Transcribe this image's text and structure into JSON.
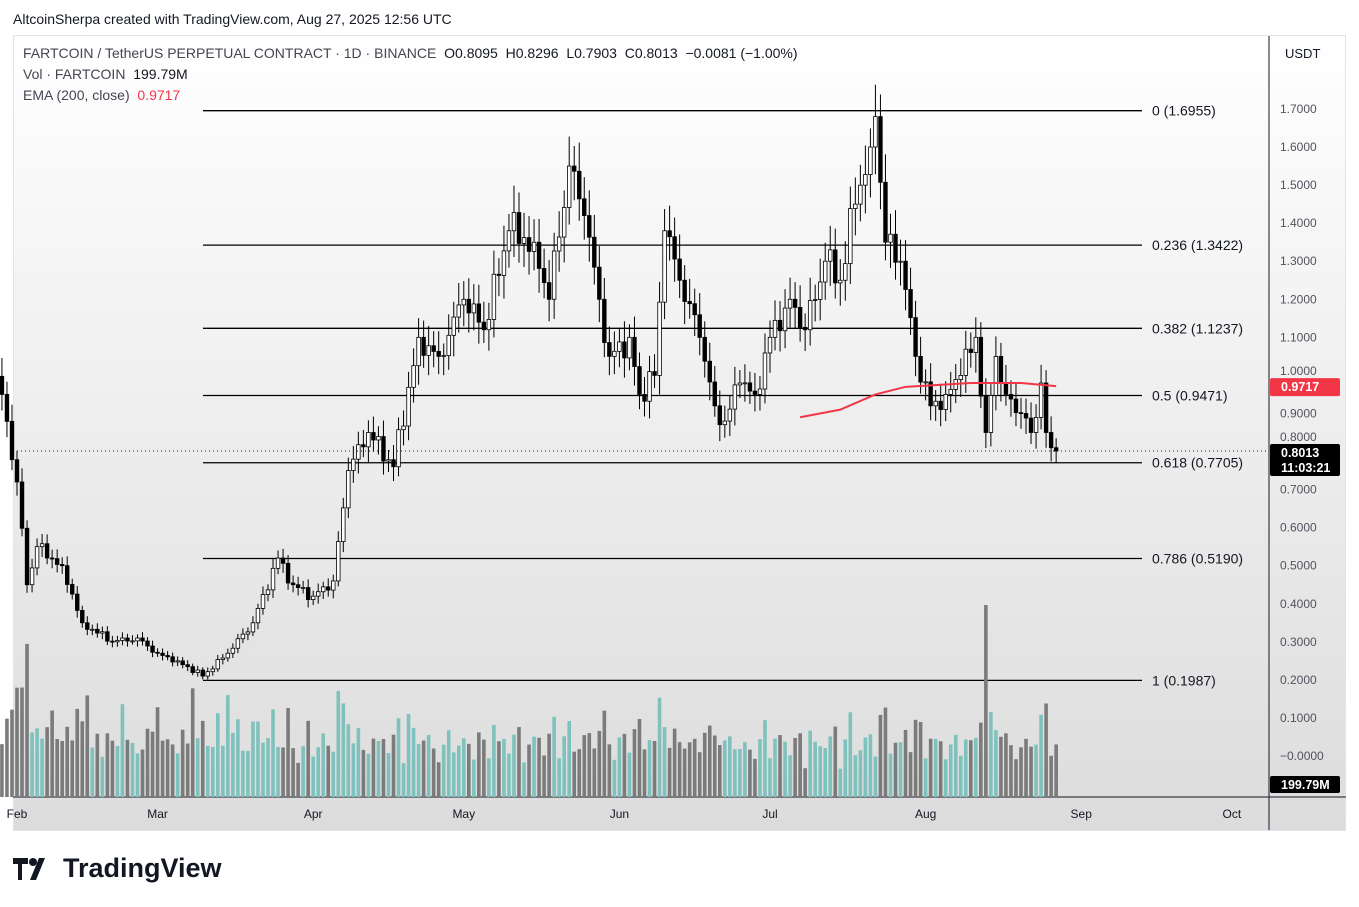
{
  "credit": "AltcoinSherpa created with TradingView.com, Aug 27, 2025 12:56 UTC",
  "legend": {
    "symbol": "FARTCOIN / TetherUS PERPETUAL CONTRACT · 1D · BINANCE",
    "open": "O0.8095",
    "high": "H0.8296",
    "low": "L0.7903",
    "close": "C0.8013",
    "change": "−0.0081 (−1.00%)",
    "vol_label": "Vol · FARTCOIN",
    "vol_value": "199.79M",
    "ema_label": "EMA (200, close)",
    "ema_value": "0.9717"
  },
  "currency": "USDT",
  "branding": "TradingView",
  "colors": {
    "ema": "#f23645",
    "up_candle": "#ffffff",
    "down_candle": "#000000",
    "vol_up": "#7fc1bd",
    "vol_down": "#7b7b7b",
    "fib_line": "#000000"
  },
  "chart_data": {
    "type": "candlestick",
    "x_ticks": [
      "Feb",
      "Mar",
      "Apr",
      "May",
      "Jun",
      "Jul",
      "Aug",
      "Sep",
      "Oct"
    ],
    "y_ticks": [
      "1.7000",
      "1.6000",
      "1.5000",
      "1.4000",
      "1.3000",
      "1.2000",
      "1.1000",
      "1.0000",
      "0.9000",
      "0.8000",
      "0.7000",
      "0.6000",
      "0.5000",
      "0.4000",
      "0.3000",
      "0.2000",
      "0.1000",
      "−0.0000"
    ],
    "ylim": [
      -0.1,
      1.8
    ],
    "last_price": "0.8013",
    "countdown": "11:03:21",
    "ema_tag": "0.9717",
    "volume_tag": "199.79M",
    "fib_levels": [
      {
        "label": "0 (1.6955)",
        "price": 1.6955
      },
      {
        "label": "0.236 (1.3422)",
        "price": 1.3422
      },
      {
        "label": "0.382 (1.1237)",
        "price": 1.1237
      },
      {
        "label": "0.5 (0.9471)",
        "price": 0.9471
      },
      {
        "label": "0.618 (0.7705)",
        "price": 0.7705
      },
      {
        "label": "0.786 (0.5190)",
        "price": 0.519
      },
      {
        "label": "1 (0.1987)",
        "price": 0.1987
      }
    ],
    "approx_close_path": [
      [
        "2025-01-29",
        0.95
      ],
      [
        "2025-02-01",
        0.72
      ],
      [
        "2025-02-03",
        0.45
      ],
      [
        "2025-02-05",
        0.55
      ],
      [
        "2025-02-10",
        0.5
      ],
      [
        "2025-02-14",
        0.35
      ],
      [
        "2025-02-20",
        0.3
      ],
      [
        "2025-02-25",
        0.31
      ],
      [
        "2025-03-01",
        0.27
      ],
      [
        "2025-03-05",
        0.25
      ],
      [
        "2025-03-10",
        0.21
      ],
      [
        "2025-03-15",
        0.27
      ],
      [
        "2025-03-20",
        0.35
      ],
      [
        "2025-03-25",
        0.52
      ],
      [
        "2025-03-28",
        0.45
      ],
      [
        "2025-04-01",
        0.42
      ],
      [
        "2025-04-05",
        0.46
      ],
      [
        "2025-04-08",
        0.75
      ],
      [
        "2025-04-12",
        0.85
      ],
      [
        "2025-04-17",
        0.76
      ],
      [
        "2025-04-22",
        1.1
      ],
      [
        "2025-04-26",
        1.05
      ],
      [
        "2025-05-01",
        1.2
      ],
      [
        "2025-05-05",
        1.12
      ],
      [
        "2025-05-10",
        1.38
      ],
      [
        "2025-05-15",
        1.35
      ],
      [
        "2025-05-18",
        1.2
      ],
      [
        "2025-05-22",
        1.55
      ],
      [
        "2025-05-25",
        1.42
      ],
      [
        "2025-05-28",
        1.2
      ],
      [
        "2025-05-30",
        1.05
      ],
      [
        "2025-06-03",
        1.1
      ],
      [
        "2025-06-05",
        0.95
      ],
      [
        "2025-06-08",
        1.0
      ],
      [
        "2025-06-10",
        1.38
      ],
      [
        "2025-06-13",
        1.25
      ],
      [
        "2025-06-17",
        1.1
      ],
      [
        "2025-06-20",
        0.92
      ],
      [
        "2025-06-22",
        0.88
      ],
      [
        "2025-06-25",
        0.98
      ],
      [
        "2025-06-28",
        0.95
      ],
      [
        "2025-07-01",
        1.1
      ],
      [
        "2025-07-05",
        1.2
      ],
      [
        "2025-07-08",
        1.12
      ],
      [
        "2025-07-12",
        1.3
      ],
      [
        "2025-07-15",
        1.25
      ],
      [
        "2025-07-18",
        1.45
      ],
      [
        "2025-07-21",
        1.6
      ],
      [
        "2025-07-22",
        1.68
      ],
      [
        "2025-07-24",
        1.35
      ],
      [
        "2025-07-27",
        1.3
      ],
      [
        "2025-07-30",
        1.05
      ],
      [
        "2025-08-02",
        0.92
      ],
      [
        "2025-08-05",
        0.95
      ],
      [
        "2025-08-08",
        1.0
      ],
      [
        "2025-08-11",
        1.1
      ],
      [
        "2025-08-13",
        0.85
      ],
      [
        "2025-08-15",
        1.05
      ],
      [
        "2025-08-17",
        0.95
      ],
      [
        "2025-08-20",
        0.9
      ],
      [
        "2025-08-22",
        0.85
      ],
      [
        "2025-08-24",
        0.98
      ],
      [
        "2025-08-25",
        0.85
      ],
      [
        "2025-08-26",
        0.81
      ],
      [
        "2025-08-27",
        0.8013
      ]
    ],
    "ema_path": [
      [
        "2025-07-07",
        0.89
      ],
      [
        "2025-07-15",
        0.91
      ],
      [
        "2025-07-22",
        0.95
      ],
      [
        "2025-07-28",
        0.97
      ],
      [
        "2025-08-10",
        0.98
      ],
      [
        "2025-08-20",
        0.98
      ],
      [
        "2025-08-27",
        0.9717
      ]
    ]
  }
}
